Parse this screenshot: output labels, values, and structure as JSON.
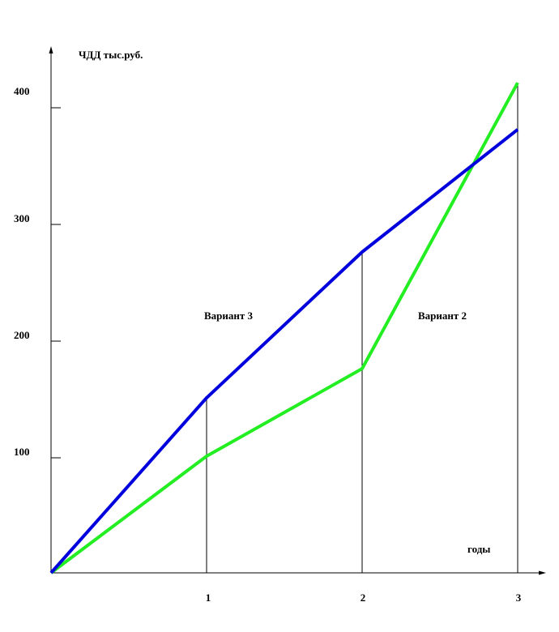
{
  "chart_data": {
    "type": "line",
    "ylabel": "ЧДД тыс.руб.",
    "xlabel": "годы",
    "x": [
      0,
      1,
      2,
      3
    ],
    "x_ticks": [
      "1",
      "2",
      "3"
    ],
    "y_ticks": [
      "100",
      "200",
      "300",
      "400"
    ],
    "ylim": [
      0,
      420
    ],
    "xlim": [
      0,
      3
    ],
    "grid": false,
    "series": [
      {
        "name": "Вариант 3",
        "color": "#0000dd",
        "values": [
          0,
          150,
          275,
          380
        ]
      },
      {
        "name": "Вариант 2",
        "color": "#22ee22",
        "values": [
          0,
          100,
          175,
          420
        ]
      }
    ]
  }
}
